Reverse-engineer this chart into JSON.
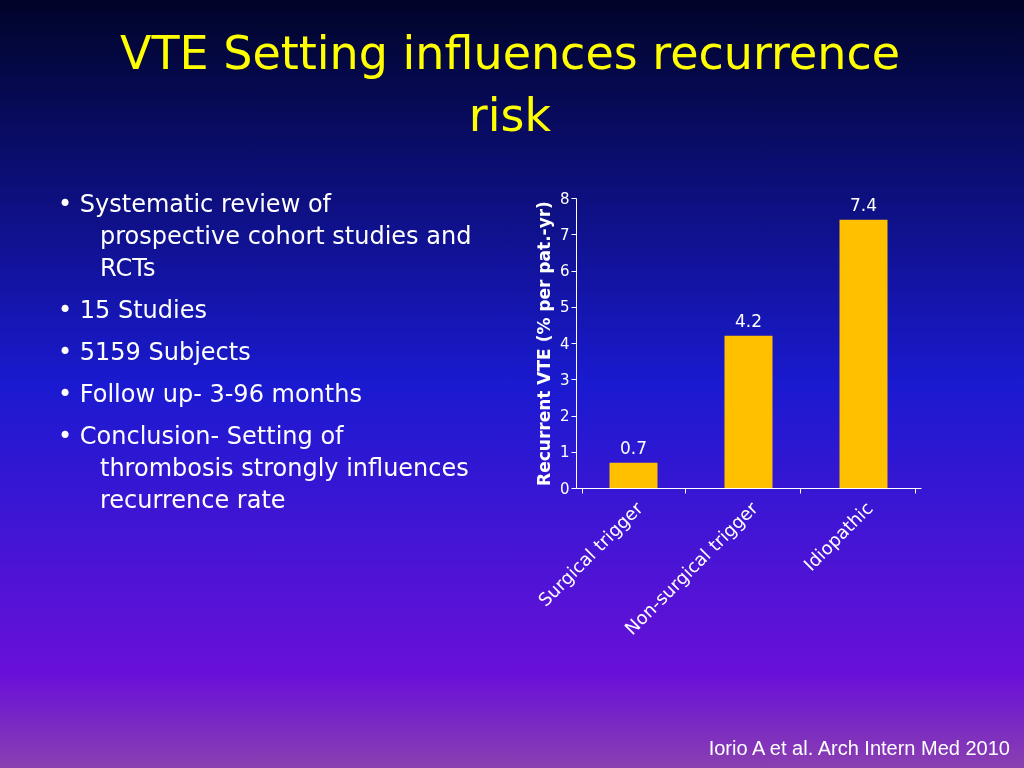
{
  "chart_data": {
    "type": "bar",
    "title": "VTE Setting influences recurrence risk",
    "ylabel": "Recurrent VTE (% per pat.-yr)",
    "categories": [
      "Surgical trigger",
      "Non-surgical trigger",
      "Idiopathic"
    ],
    "values": [
      0.7,
      4.2,
      7.4
    ],
    "color": "#ffc000",
    "ylim": [
      0,
      8
    ],
    "yticks": [
      0,
      1,
      2,
      3,
      4,
      5,
      6,
      7,
      8
    ],
    "data_labels": true,
    "grid": false,
    "annotations": [
      "• Systematic review of prospective cohort studies and RCTs",
      "• 15 Studies",
      "• 5159 Subjects",
      "• Follow up- 3-96 months",
      "• Conclusion- Setting of thrombosis strongly influences recurrence rate",
      "Iorio A et al. Arch Intern Med 2010"
    ]
  }
}
